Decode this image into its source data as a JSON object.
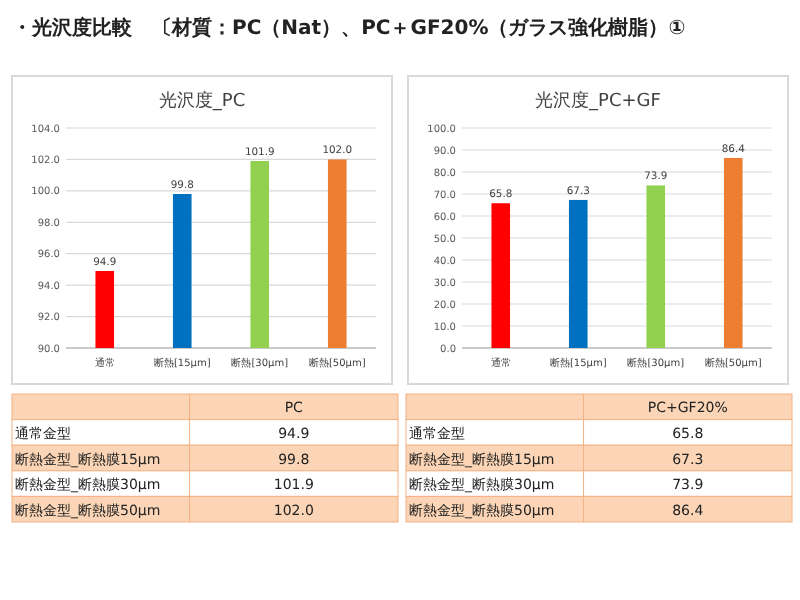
{
  "chart_data": [
    {
      "type": "other",
      "title": "・光沢度比較　〔材質：PC（Nat）、PC＋GF20%（ガラス強化樹脂）①"
    },
    {
      "type": "bar",
      "title": "光沢度_PC",
      "categories": [
        "通常",
        "断熱[15μm]",
        "断熱[30μm]",
        "断熱[50μm]"
      ],
      "values": [
        94.9,
        99.8,
        101.9,
        102.0
      ],
      "value_labels": [
        "94.9",
        "99.8",
        "101.9",
        "102.0"
      ],
      "colors": [
        "#ff0000",
        "#0070c0",
        "#92d050",
        "#ed7d31"
      ],
      "ylim": [
        90,
        104
      ],
      "yticks": [
        {
          "value": 90,
          "label": "90.0"
        },
        {
          "value": 92,
          "label": "92.0"
        },
        {
          "value": 94,
          "label": "94.0"
        },
        {
          "value": 96,
          "label": "96.0"
        },
        {
          "value": 98,
          "label": "98.0"
        },
        {
          "value": 100,
          "label": "100.0"
        },
        {
          "value": 102,
          "label": "102.0"
        },
        {
          "value": 104,
          "label": "104.0"
        }
      ],
      "grid": "y"
    },
    {
      "type": "bar",
      "title": "光沢度_PC+GF",
      "categories": [
        "通常",
        "断熱[15μm]",
        "断熱[30μm]",
        "断熱[50μm]"
      ],
      "values": [
        65.8,
        67.3,
        73.9,
        86.4
      ],
      "value_labels": [
        "65.8",
        "67.3",
        "73.9",
        "86.4"
      ],
      "colors": [
        "#ff0000",
        "#0070c0",
        "#92d050",
        "#ed7d31"
      ],
      "ylim": [
        0,
        100
      ],
      "yticks": [
        {
          "value": 0,
          "label": "0.0"
        },
        {
          "value": 10,
          "label": "10.0"
        },
        {
          "value": 20,
          "label": "20.0"
        },
        {
          "value": 30,
          "label": "30.0"
        },
        {
          "value": 40,
          "label": "40.0"
        },
        {
          "value": 50,
          "label": "50.0"
        },
        {
          "value": 60,
          "label": "60.0"
        },
        {
          "value": 70,
          "label": "70.0"
        },
        {
          "value": 80,
          "label": "80.0"
        },
        {
          "value": 90,
          "label": "90.0"
        },
        {
          "value": 100,
          "label": "100.0"
        }
      ],
      "grid": "y"
    },
    {
      "type": "other",
      "title": "PC",
      "categories": [
        "通常金型",
        "断熱金型_断熱膜15μm",
        "断熱金型_断熱膜30μm",
        "断熱金型_断熱膜50μm"
      ],
      "value_labels": [
        "94.9",
        "99.8",
        "101.9",
        "102.0"
      ]
    },
    {
      "type": "other",
      "title": "PC+GF20%",
      "categories": [
        "通常金型",
        "断熱金型_断熱膜15μm",
        "断熱金型_断熱膜30μm",
        "断熱金型_断熱膜50μm"
      ],
      "value_labels": [
        "65.8",
        "67.3",
        "73.9",
        "86.4"
      ]
    }
  ]
}
